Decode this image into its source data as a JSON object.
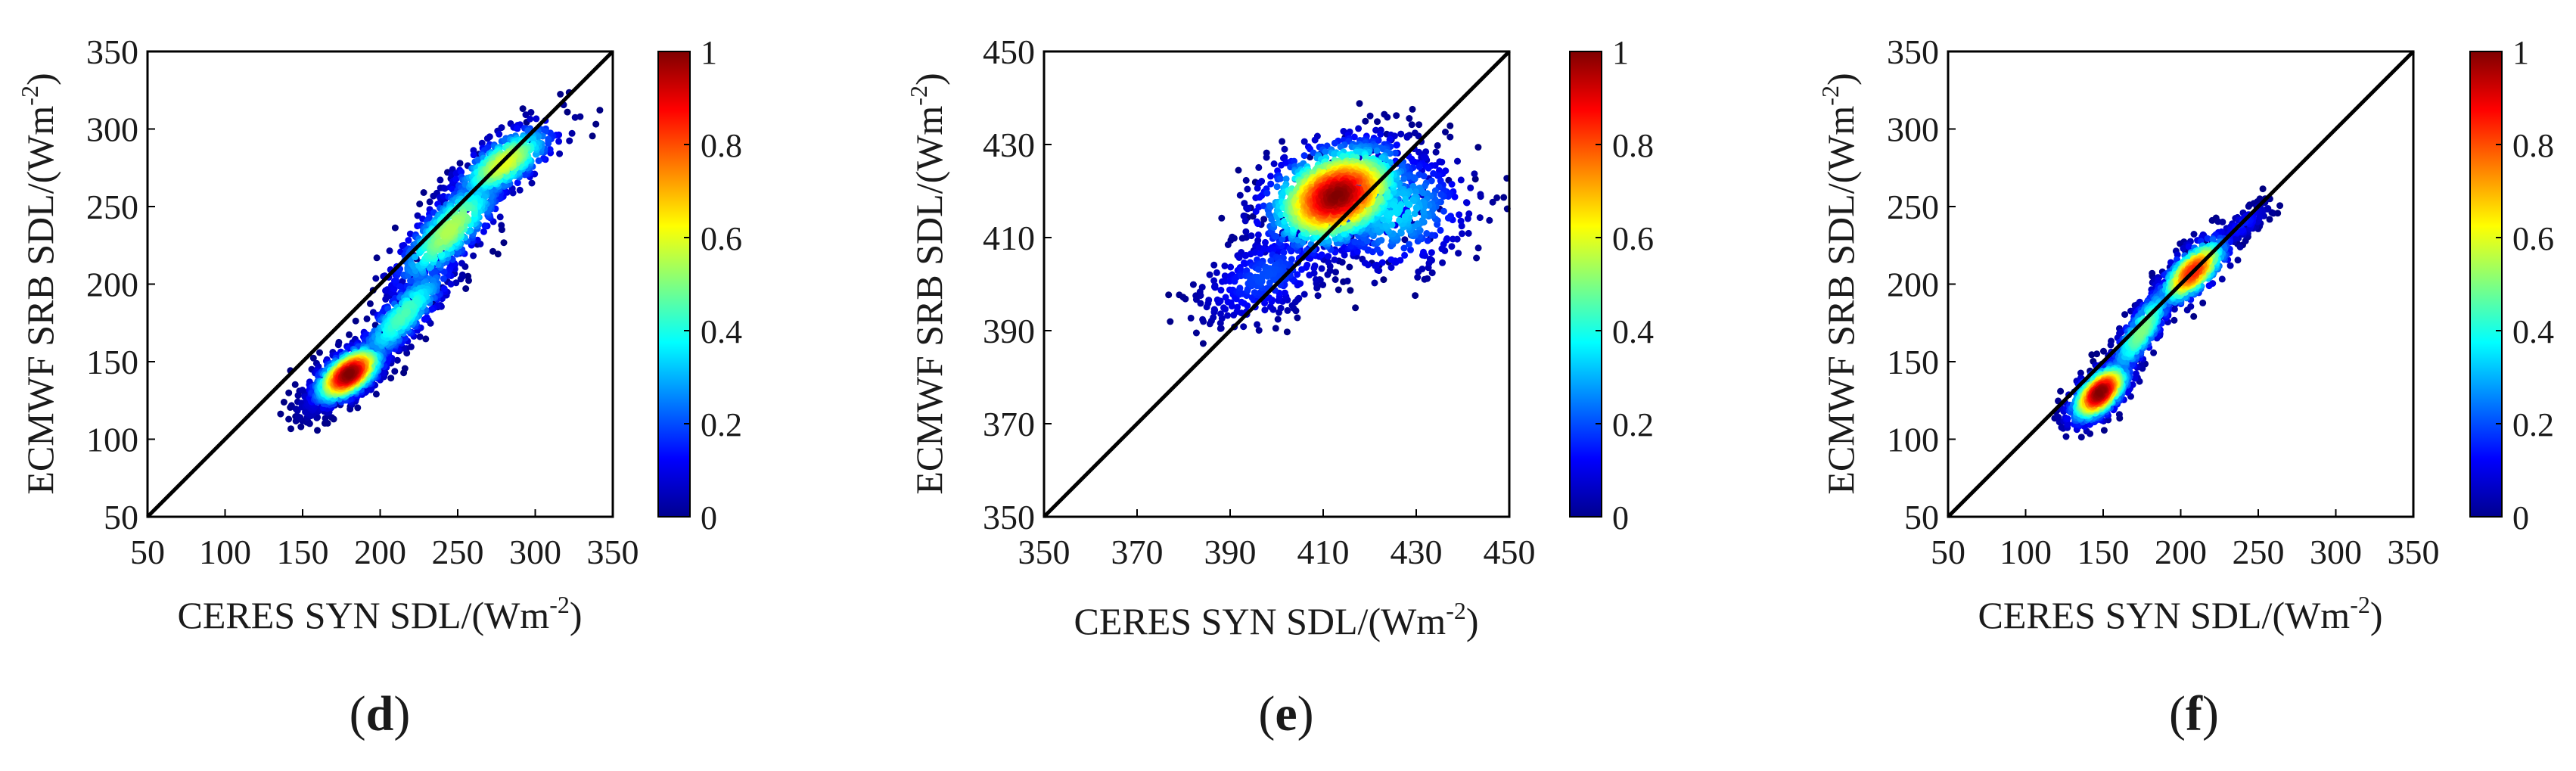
{
  "chart_data": [
    {
      "panel": "d",
      "type": "scatter",
      "title": "",
      "xlabel": "CERES SYN SDL/(Wm",
      "ylabel": "ECMWF SRB SDL/(Wm",
      "unit_superscript": "-2",
      "unit_close": ")",
      "xlim": [
        50,
        350
      ],
      "ylim": [
        50,
        350
      ],
      "xticks": [
        50,
        100,
        150,
        200,
        250,
        300,
        350
      ],
      "yticks": [
        50,
        100,
        150,
        200,
        250,
        300,
        350
      ],
      "one_to_one_line": true,
      "colorbar": {
        "range": [
          0,
          1
        ],
        "ticks": [
          "0",
          "0.2",
          "0.4",
          "0.6",
          "0.8",
          "1"
        ],
        "colormap": "jet"
      },
      "density_clusters": [
        {
          "center": [
            180,
            142
          ],
          "spread": [
            12,
            10
          ],
          "correlation": 0.6,
          "count": 900,
          "peak": 1.0
        },
        {
          "center": [
            215,
            180
          ],
          "spread": [
            18,
            20
          ],
          "correlation": 0.85,
          "count": 500,
          "peak": 0.45
        },
        {
          "center": [
            245,
            235
          ],
          "spread": [
            20,
            22
          ],
          "correlation": 0.8,
          "count": 600,
          "peak": 0.55
        },
        {
          "center": [
            280,
            278
          ],
          "spread": [
            18,
            14
          ],
          "correlation": 0.7,
          "count": 500,
          "peak": 0.6
        },
        {
          "center": [
            160,
            125
          ],
          "spread": [
            10,
            8
          ],
          "correlation": 0.4,
          "count": 150,
          "peak": 0.1
        }
      ]
    },
    {
      "panel": "e",
      "type": "scatter",
      "title": "",
      "xlabel": "CERES SYN SDL/(Wm",
      "ylabel": "ECMWF SRB SDL/(Wm",
      "unit_superscript": "-2",
      "unit_close": ")",
      "xlim": [
        350,
        450
      ],
      "ylim": [
        350,
        450
      ],
      "xticks": [
        350,
        370,
        390,
        410,
        430,
        450
      ],
      "yticks": [
        350,
        370,
        390,
        410,
        430,
        450
      ],
      "one_to_one_line": true,
      "colorbar": {
        "range": [
          0,
          1
        ],
        "ticks": [
          "0",
          "0.2",
          "0.4",
          "0.6",
          "0.8",
          "1"
        ],
        "colormap": "jet"
      },
      "density_clusters": [
        {
          "center": [
            413,
            419
          ],
          "spread": [
            8,
            6
          ],
          "correlation": 0.3,
          "count": 1400,
          "peak": 1.0
        },
        {
          "center": [
            425,
            416
          ],
          "spread": [
            9,
            7
          ],
          "correlation": 0.1,
          "count": 500,
          "peak": 0.35
        },
        {
          "center": [
            398,
            402
          ],
          "spread": [
            8,
            6
          ],
          "correlation": 0.5,
          "count": 350,
          "peak": 0.2
        }
      ]
    },
    {
      "panel": "f",
      "type": "scatter",
      "title": "",
      "xlabel": "CERES SYN SDL/(Wm",
      "ylabel": "ECMWF SRB SDL/(Wm",
      "unit_superscript": "-2",
      "unit_close": ")",
      "xlim": [
        50,
        350
      ],
      "ylim": [
        50,
        350
      ],
      "xticks": [
        50,
        100,
        150,
        200,
        250,
        300,
        350
      ],
      "yticks": [
        50,
        100,
        150,
        200,
        250,
        300,
        350
      ],
      "one_to_one_line": true,
      "colorbar": {
        "range": [
          0,
          1
        ],
        "ticks": [
          "0",
          "0.2",
          "0.4",
          "0.6",
          "0.8",
          "1"
        ],
        "colormap": "jet"
      },
      "density_clusters": [
        {
          "center": [
            148,
            130
          ],
          "spread": [
            10,
            10
          ],
          "correlation": 0.6,
          "count": 800,
          "peak": 1.0
        },
        {
          "center": [
            175,
            170
          ],
          "spread": [
            12,
            18
          ],
          "correlation": 0.85,
          "count": 450,
          "peak": 0.5
        },
        {
          "center": [
            208,
            208
          ],
          "spread": [
            12,
            12
          ],
          "correlation": 0.7,
          "count": 500,
          "peak": 0.85
        },
        {
          "center": [
            240,
            238
          ],
          "spread": [
            10,
            8
          ],
          "correlation": 0.8,
          "count": 120,
          "peak": 0.15
        }
      ]
    }
  ],
  "panel_labels": {
    "d": "d",
    "e": "e",
    "f": "f"
  },
  "panel_label_open": "(",
  "panel_label_close": ")"
}
